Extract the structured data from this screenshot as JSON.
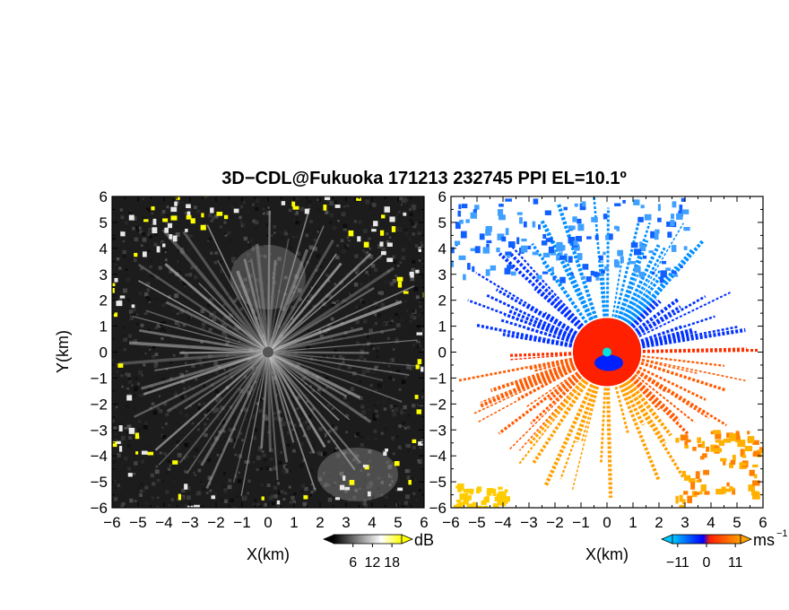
{
  "chart_data": [
    {
      "type": "heatmap",
      "title": "3D−CDL@Fukuoka 171213 232745 PPI EL=10.1º",
      "xlabel": "X(km)",
      "ylabel": "Y(km)",
      "xlim": [
        -6,
        6
      ],
      "ylim": [
        -6,
        6
      ],
      "x_ticks": [
        "−6",
        "−5",
        "−4",
        "−3",
        "−2",
        "−1",
        "0",
        "1",
        "2",
        "3",
        "4",
        "5",
        "6"
      ],
      "y_ticks": [
        "6",
        "5",
        "4",
        "3",
        "2",
        "1",
        "0",
        "−1",
        "−2",
        "−3",
        "−4",
        "−5",
        "−6"
      ],
      "field": "signal-to-noise ratio",
      "colorbar": {
        "unit": "dB",
        "ticks": [
          "6",
          "12",
          "18"
        ],
        "range": [
          0,
          21
        ],
        "colors": [
          "#000000",
          "#ffffff",
          "#ffff00"
        ]
      },
      "max_range_km": 6
    },
    {
      "type": "heatmap",
      "xlabel": "X(km)",
      "xlim": [
        -6,
        6
      ],
      "ylim": [
        -6,
        6
      ],
      "x_ticks": [
        "−6",
        "−5",
        "−4",
        "−3",
        "−2",
        "−1",
        "0",
        "1",
        "2",
        "3",
        "4",
        "5",
        "6"
      ],
      "y_ticks": [
        "6",
        "5",
        "4",
        "3",
        "2",
        "1",
        "0",
        "−1",
        "−2",
        "−3",
        "−4",
        "−5",
        "−6"
      ],
      "field": "Doppler velocity",
      "colorbar": {
        "unit": "ms",
        "unit_exp": "−1",
        "ticks": [
          "−11",
          "0",
          "11"
        ],
        "range": [
          -13,
          13
        ],
        "colors": [
          "#00c8ff",
          "#0000ff",
          "#ff2000",
          "#ffa000"
        ]
      },
      "max_range_km": 6
    }
  ]
}
